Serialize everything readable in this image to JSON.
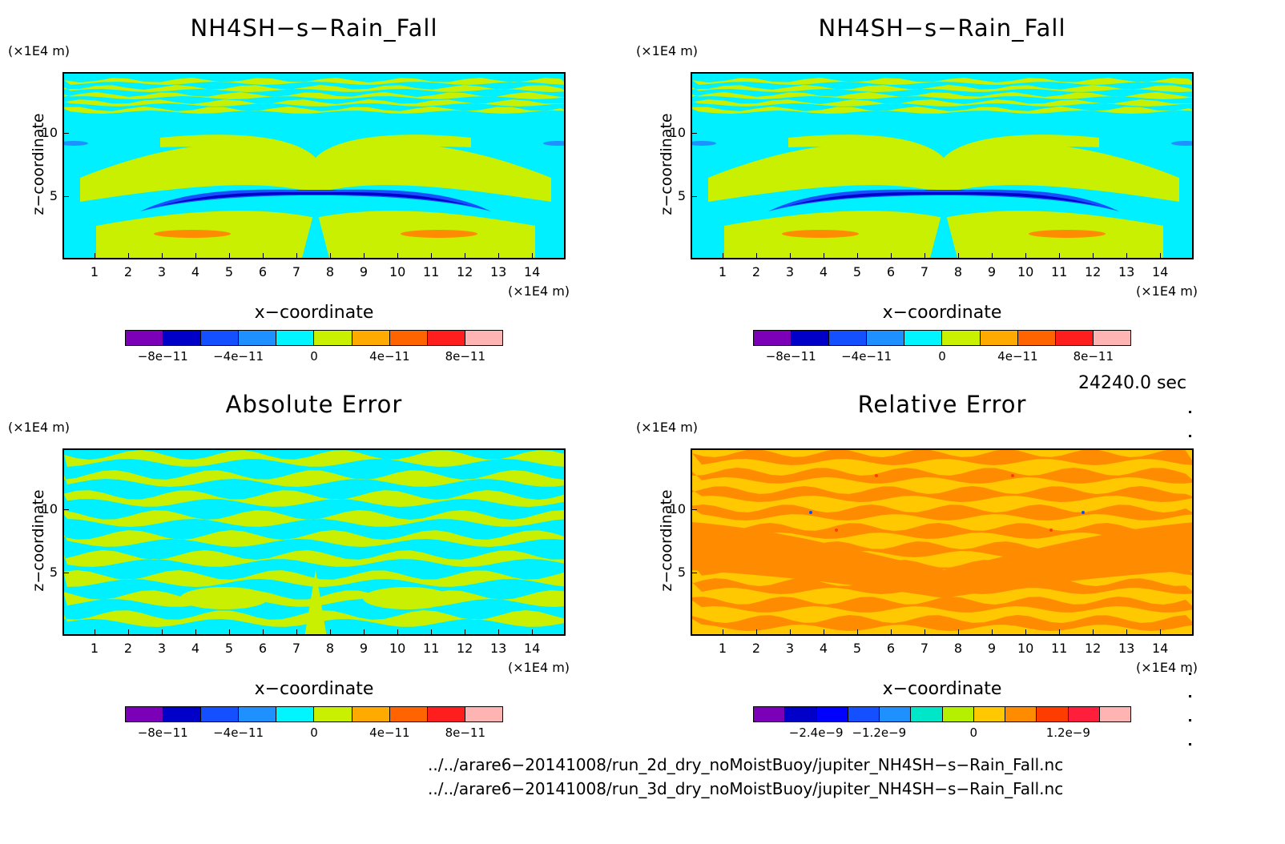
{
  "chart_data": [
    {
      "type": "heatmap",
      "title": "NH4SH−s−Rain_Fall",
      "xlabel": "x−coordinate",
      "ylabel": "z−coordinate",
      "x_unit": "(×1E4 m)",
      "y_unit": "(×1E4 m)",
      "x_ticks": [
        "1",
        "2",
        "3",
        "4",
        "5",
        "6",
        "7",
        "8",
        "9",
        "10",
        "11",
        "12",
        "13",
        "14"
      ],
      "y_ticks": [
        "5",
        "10"
      ],
      "colorbar_ticks": [
        "−8e−11",
        "−4e−11",
        "0",
        "4e−11",
        "8e−11"
      ],
      "colorbar_colors": [
        "#7b00b8",
        "#0000c8",
        "#1450ff",
        "#1e90ff",
        "#00f5ff",
        "#c8f000",
        "#ffaa00",
        "#ff6400",
        "#ff1e1e",
        "#ffb4b4"
      ],
      "background": "#00f0ff"
    },
    {
      "type": "heatmap",
      "title": "NH4SH−s−Rain_Fall",
      "xlabel": "x−coordinate",
      "ylabel": "z−coordinate",
      "x_unit": "(×1E4 m)",
      "y_unit": "(×1E4 m)",
      "x_ticks": [
        "1",
        "2",
        "3",
        "4",
        "5",
        "6",
        "7",
        "8",
        "9",
        "10",
        "11",
        "12",
        "13",
        "14"
      ],
      "y_ticks": [
        "5",
        "10"
      ],
      "colorbar_ticks": [
        "−8e−11",
        "−4e−11",
        "0",
        "4e−11",
        "8e−11"
      ],
      "colorbar_colors": [
        "#7b00b8",
        "#0000c8",
        "#1450ff",
        "#1e90ff",
        "#00f5ff",
        "#c8f000",
        "#ffaa00",
        "#ff6400",
        "#ff1e1e",
        "#ffb4b4"
      ],
      "background": "#00f0ff"
    },
    {
      "type": "heatmap",
      "title": "Absolute Error",
      "xlabel": "x−coordinate",
      "ylabel": "z−coordinate",
      "x_unit": "(×1E4 m)",
      "y_unit": "(×1E4 m)",
      "x_ticks": [
        "1",
        "2",
        "3",
        "4",
        "5",
        "6",
        "7",
        "8",
        "9",
        "10",
        "11",
        "12",
        "13",
        "14"
      ],
      "y_ticks": [
        "5",
        "10"
      ],
      "colorbar_ticks": [
        "−8e−11",
        "−4e−11",
        "0",
        "4e−11",
        "8e−11"
      ],
      "colorbar_colors": [
        "#7b00b8",
        "#0000c8",
        "#1450ff",
        "#1e90ff",
        "#00f5ff",
        "#c8f000",
        "#ffaa00",
        "#ff6400",
        "#ff1e1e",
        "#ffb4b4"
      ],
      "background": "#00f0ff"
    },
    {
      "type": "heatmap",
      "title": "Relative Error",
      "xlabel": "x−coordinate",
      "ylabel": "z−coordinate",
      "x_unit": "(×1E4 m)",
      "y_unit": "(×1E4 m)",
      "x_ticks": [
        "1",
        "2",
        "3",
        "4",
        "5",
        "6",
        "7",
        "8",
        "9",
        "10",
        "11",
        "12",
        "13",
        "14"
      ],
      "y_ticks": [
        "5",
        "10"
      ],
      "colorbar_ticks": [
        "−2.4e−9",
        "−1.2e−9",
        "0",
        "1.2e−9"
      ],
      "colorbar_colors": [
        "#7b00b8",
        "#0000c8",
        "#0000ff",
        "#1450ff",
        "#1e90ff",
        "#00e6c8",
        "#b4f000",
        "#ffc800",
        "#ff8c00",
        "#ff3c00",
        "#ff1e3c",
        "#ffb4b4"
      ],
      "background": "#ffc800"
    }
  ],
  "timestamp": "24240.0 sec",
  "files": [
    "../../arare6−20141008/run_2d_dry_noMoistBuoy/jupiter_NH4SH−s−Rain_Fall.nc",
    "../../arare6−20141008/run_3d_dry_noMoistBuoy/jupiter_NH4SH−s−Rain_Fall.nc"
  ]
}
